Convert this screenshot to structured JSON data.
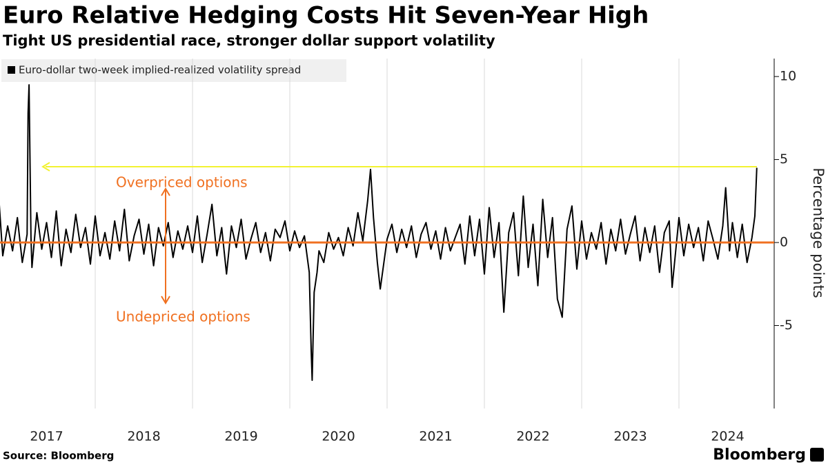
{
  "chart_data": {
    "type": "line",
    "title": "Euro Relative Hedging Costs Hit Seven-Year High",
    "subtitle": "Tight US presidential race, stronger dollar support volatility",
    "y_label": "Percentage points",
    "source": "Source: Bloomberg",
    "brand": "Bloomberg",
    "annotations": [
      "Overpriced options",
      "Undepriced options"
    ],
    "xlim": [
      2017,
      2025
    ],
    "xticks": [
      2017,
      2018,
      2019,
      2020,
      2021,
      2022,
      2023,
      2024
    ],
    "ylim": [
      -10,
      11
    ],
    "yticks": [
      -5,
      0,
      5,
      10
    ],
    "grid": "x",
    "x": [
      2017.0,
      2017.05,
      2017.1,
      2017.15,
      2017.2,
      2017.25,
      2017.3,
      2017.31,
      2017.32,
      2017.34,
      2017.35,
      2017.4,
      2017.45,
      2017.5,
      2017.55,
      2017.6,
      2017.65,
      2017.7,
      2017.75,
      2017.8,
      2017.85,
      2017.9,
      2017.95,
      2018.0,
      2018.05,
      2018.1,
      2018.15,
      2018.2,
      2018.25,
      2018.3,
      2018.35,
      2018.4,
      2018.45,
      2018.5,
      2018.55,
      2018.6,
      2018.65,
      2018.7,
      2018.75,
      2018.8,
      2018.85,
      2018.9,
      2018.95,
      2019.0,
      2019.05,
      2019.1,
      2019.15,
      2019.2,
      2019.25,
      2019.3,
      2019.35,
      2019.4,
      2019.45,
      2019.5,
      2019.55,
      2019.6,
      2019.65,
      2019.7,
      2019.75,
      2019.8,
      2019.85,
      2019.9,
      2019.95,
      2020.0,
      2020.05,
      2020.1,
      2020.15,
      2020.2,
      2020.22,
      2020.23,
      2020.25,
      2020.28,
      2020.3,
      2020.35,
      2020.4,
      2020.45,
      2020.5,
      2020.55,
      2020.6,
      2020.65,
      2020.7,
      2020.75,
      2020.8,
      2020.83,
      2020.86,
      2020.9,
      2020.93,
      2021.0,
      2021.05,
      2021.1,
      2021.15,
      2021.2,
      2021.25,
      2021.3,
      2021.35,
      2021.4,
      2021.45,
      2021.5,
      2021.55,
      2021.6,
      2021.65,
      2021.7,
      2021.75,
      2021.8,
      2021.85,
      2021.9,
      2021.95,
      2022.0,
      2022.05,
      2022.1,
      2022.15,
      2022.2,
      2022.25,
      2022.3,
      2022.35,
      2022.4,
      2022.45,
      2022.5,
      2022.55,
      2022.6,
      2022.65,
      2022.7,
      2022.75,
      2022.8,
      2022.85,
      2022.9,
      2022.95,
      2023.0,
      2023.05,
      2023.1,
      2023.15,
      2023.2,
      2023.25,
      2023.3,
      2023.35,
      2023.4,
      2023.45,
      2023.5,
      2023.55,
      2023.6,
      2023.65,
      2023.7,
      2023.75,
      2023.8,
      2023.85,
      2023.9,
      2023.93,
      2024.0,
      2024.05,
      2024.1,
      2024.15,
      2024.2,
      2024.25,
      2024.3,
      2024.35,
      2024.4,
      2024.45,
      2024.48,
      2024.52,
      2024.55,
      2024.6,
      2024.65,
      2024.7,
      2024.75,
      2024.78,
      2024.8
    ],
    "series": [
      {
        "name": "Euro-dollar two-week implied-realized volatility spread",
        "color": "#000000",
        "values": [
          3.5,
          -0.8,
          1.0,
          -0.5,
          1.5,
          -1.2,
          0.5,
          7.8,
          9.5,
          0.3,
          -1.5,
          1.8,
          -0.4,
          1.2,
          -0.9,
          1.9,
          -1.4,
          0.8,
          -0.6,
          1.7,
          -0.3,
          0.9,
          -1.3,
          1.6,
          -0.8,
          0.6,
          -1.0,
          1.3,
          -0.5,
          2.0,
          -1.1,
          0.4,
          1.4,
          -0.7,
          1.1,
          -1.4,
          0.9,
          -0.2,
          1.2,
          -0.9,
          0.7,
          -0.4,
          1.0,
          -0.6,
          1.6,
          -1.2,
          0.5,
          2.3,
          -0.8,
          0.9,
          -1.9,
          1.0,
          -0.3,
          1.4,
          -1.0,
          0.2,
          1.2,
          -0.6,
          0.6,
          -1.1,
          0.8,
          0.3,
          1.3,
          -0.5,
          0.7,
          -0.3,
          0.4,
          -1.8,
          -6.5,
          -8.3,
          -3.0,
          -1.8,
          -0.5,
          -1.2,
          0.6,
          -0.4,
          0.3,
          -0.8,
          0.9,
          -0.2,
          1.8,
          0.1,
          2.5,
          4.4,
          1.5,
          -1.2,
          -2.8,
          0.2,
          1.1,
          -0.6,
          0.8,
          -0.3,
          1.0,
          -0.9,
          0.5,
          1.2,
          -0.4,
          0.7,
          -1.0,
          0.9,
          -0.5,
          0.3,
          1.1,
          -1.3,
          1.6,
          -0.8,
          1.4,
          -1.9,
          2.1,
          -0.9,
          1.2,
          -4.2,
          0.6,
          1.8,
          -2.0,
          2.8,
          -1.5,
          1.1,
          -2.6,
          2.6,
          -0.9,
          1.5,
          -3.4,
          -4.5,
          0.8,
          2.2,
          -1.6,
          1.3,
          -1.0,
          0.6,
          -0.4,
          1.2,
          -1.3,
          0.8,
          -0.5,
          1.4,
          -0.7,
          0.5,
          1.6,
          -1.1,
          0.9,
          -0.6,
          1.0,
          -1.8,
          0.6,
          1.3,
          -2.7,
          1.5,
          -0.8,
          1.1,
          -0.3,
          0.9,
          -1.1,
          1.3,
          0.2,
          -1.0,
          1.0,
          3.3,
          -0.5,
          1.2,
          -0.9,
          1.1,
          -1.2,
          0.3,
          1.6,
          4.5
        ]
      }
    ]
  }
}
